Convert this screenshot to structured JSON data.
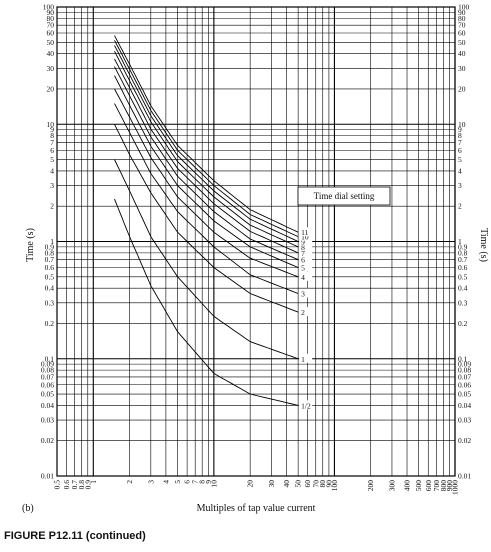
{
  "chart_data": {
    "type": "line",
    "title": "",
    "xlabel": "Multiples of tap value current",
    "ylabel": "Time (s)",
    "x_scale": "log",
    "y_scale": "log",
    "xlim": [
      0.5,
      1000
    ],
    "ylim": [
      0.01,
      100
    ],
    "grid": true,
    "legend_title": "Time dial setting",
    "x_ticks": [
      "0.5",
      "0.6",
      "0.7",
      "0.8",
      "0.9",
      "1",
      "2",
      "3",
      "4",
      "5",
      "6",
      "7",
      "8",
      "9",
      "10",
      "20",
      "30",
      "40",
      "50",
      "60",
      "70",
      "80",
      "90",
      "100",
      "200",
      "300",
      "400",
      "500",
      "600",
      "700",
      "800",
      "900",
      "1000"
    ],
    "y_ticks": [
      "100",
      "90",
      "80",
      "70",
      "60",
      "50",
      "40",
      "30",
      "20",
      "10",
      "9",
      "8",
      "7",
      "6",
      "5",
      "4",
      "3",
      "2",
      "1",
      "0.9",
      "0.8",
      "0.7",
      "0.6",
      "0.5",
      "0.4",
      "0.3",
      "0.2",
      "0.1",
      "0.09",
      "0.08",
      "0.07",
      "0.06",
      "0.05",
      "0.04",
      "0.03",
      "0.02",
      "0.01"
    ],
    "series": [
      {
        "name": "1/2",
        "x": [
          1.5,
          2,
          3,
          5,
          10,
          20,
          50
        ],
        "y": [
          2.3,
          1.1,
          0.42,
          0.17,
          0.075,
          0.05,
          0.04
        ]
      },
      {
        "name": "1",
        "x": [
          1.5,
          2,
          3,
          5,
          10,
          20,
          50
        ],
        "y": [
          5.0,
          2.7,
          1.1,
          0.5,
          0.23,
          0.14,
          0.1
        ]
      },
      {
        "name": "2",
        "x": [
          1.5,
          2,
          3,
          5,
          10,
          20,
          50
        ],
        "y": [
          10,
          5.5,
          2.6,
          1.2,
          0.6,
          0.36,
          0.25
        ]
      },
      {
        "name": "3",
        "x": [
          1.5,
          2,
          3,
          5,
          10,
          20,
          50
        ],
        "y": [
          15,
          8.5,
          3.8,
          1.8,
          0.9,
          0.52,
          0.36
        ]
      },
      {
        "name": "4",
        "x": [
          1.5,
          2,
          3,
          5,
          10,
          20,
          50
        ],
        "y": [
          20,
          11.5,
          5.2,
          2.4,
          1.2,
          0.72,
          0.5
        ]
      },
      {
        "name": "5",
        "x": [
          1.5,
          2,
          3,
          5,
          10,
          20,
          50
        ],
        "y": [
          26,
          14.5,
          6.5,
          3.0,
          1.5,
          0.9,
          0.6
        ]
      },
      {
        "name": "6",
        "x": [
          1.5,
          2,
          3,
          5,
          10,
          20,
          50
        ],
        "y": [
          31,
          17.5,
          7.8,
          3.6,
          1.8,
          1.05,
          0.7
        ]
      },
      {
        "name": "7",
        "x": [
          1.5,
          2,
          3,
          5,
          10,
          20,
          50
        ],
        "y": [
          36,
          20.5,
          9.1,
          4.2,
          2.1,
          1.22,
          0.8
        ]
      },
      {
        "name": "8",
        "x": [
          1.5,
          2,
          3,
          5,
          10,
          20,
          50
        ],
        "y": [
          42,
          23.5,
          10.5,
          4.8,
          2.4,
          1.38,
          0.9
        ]
      },
      {
        "name": "9",
        "x": [
          1.5,
          2,
          3,
          5,
          10,
          20,
          50
        ],
        "y": [
          47,
          26.5,
          11.8,
          5.4,
          2.7,
          1.55,
          1.0
        ]
      },
      {
        "name": "10",
        "x": [
          1.5,
          2,
          3,
          5,
          10,
          20,
          50
        ],
        "y": [
          52,
          29.5,
          13.1,
          6.0,
          3.0,
          1.7,
          1.1
        ]
      },
      {
        "name": "11",
        "x": [
          1.5,
          2,
          3,
          5,
          10,
          20,
          50
        ],
        "y": [
          57,
          32.5,
          14.4,
          6.6,
          3.3,
          1.87,
          1.2
        ]
      }
    ]
  },
  "panel_label": "(b)",
  "caption": "FIGURE P12.11 (continued)"
}
